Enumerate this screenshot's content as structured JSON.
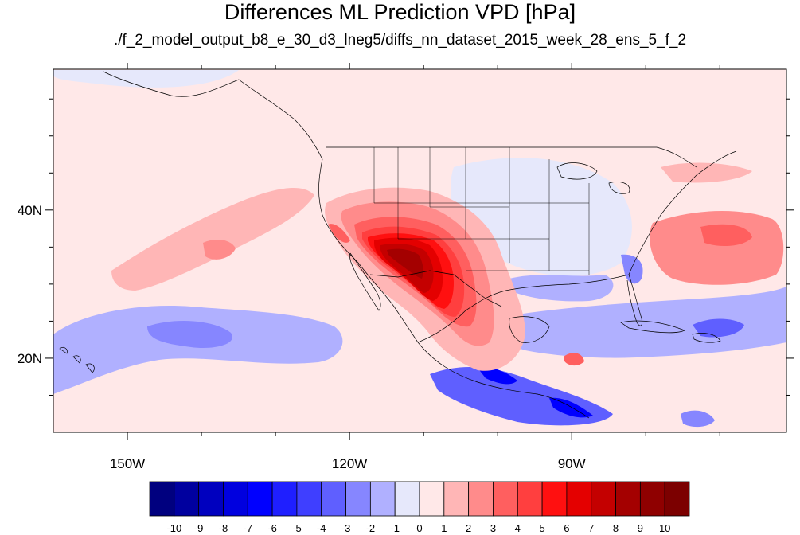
{
  "chart_data": {
    "type": "heatmap",
    "title": "Differences ML Prediction VPD [hPa]",
    "subtitle": "./f_2_model_output_b8_e_30_d3_lneg5/diffs_nn_dataset_2015_week_28_ens_5_f_2",
    "units": "hPa",
    "map_extent": {
      "lon": [
        -160,
        -61
      ],
      "lat": [
        10,
        59
      ]
    },
    "x_ticks": [
      {
        "value": -150,
        "label": "150W"
      },
      {
        "value": -120,
        "label": "120W"
      },
      {
        "value": -90,
        "label": "90W"
      }
    ],
    "y_ticks": [
      {
        "value": 40,
        "label": "40N"
      },
      {
        "value": 20,
        "label": "20N"
      }
    ],
    "x_minor_ticks": [
      -140,
      -130,
      -110,
      -100,
      -80,
      -70
    ],
    "y_minor_ticks": [
      15,
      25,
      30,
      35,
      45,
      50,
      55
    ],
    "colorbar": {
      "levels": [
        -10,
        -9,
        -8,
        -7,
        -6,
        -5,
        -4,
        -3,
        -2,
        -1,
        0,
        1,
        2,
        3,
        4,
        5,
        6,
        7,
        8,
        9,
        10
      ],
      "level_labels": [
        "-10",
        "-9",
        "-8",
        "-7",
        "-6",
        "-5",
        "-4",
        "-3",
        "-2",
        "-1",
        "0",
        "1",
        "2",
        "3",
        "4",
        "5",
        "6",
        "7",
        "8",
        "9",
        "10"
      ],
      "colors": [
        "#00007f",
        "#00009f",
        "#0000bf",
        "#0000df",
        "#0000ff",
        "#1f1fff",
        "#3f3fff",
        "#5f5fff",
        "#8686ff",
        "#b0b0ff",
        "#e6e8fb",
        "#ffe8e8",
        "#ffb6b6",
        "#ff8b8b",
        "#ff5f5f",
        "#ff3f3f",
        "#ff1010",
        "#e40000",
        "#c40000",
        "#a40000",
        "#8f0000",
        "#7c0000"
      ]
    },
    "regions": [
      {
        "name": "background",
        "level_index": 11
      },
      {
        "name": "north-pacific-cool-patch",
        "level_index": 10
      },
      {
        "name": "eastern-us-cool",
        "level_index": 10
      },
      {
        "name": "gulf-coast-cool",
        "level_index": 9
      },
      {
        "name": "florida-coast-cool",
        "level_index": 8
      },
      {
        "name": "subtropical-pacific-cool-band",
        "level_index": 9
      },
      {
        "name": "central-pacific-cool-core",
        "level_index": 8
      },
      {
        "name": "caribbean-cool",
        "level_index": 9
      },
      {
        "name": "caribbean-cool-core",
        "level_index": 7
      },
      {
        "name": "central-america-coast-cool",
        "level_index": 7
      },
      {
        "name": "central-america-coast-core",
        "level_index": 4
      },
      {
        "name": "far-east-pacific-cool",
        "level_index": 8
      },
      {
        "name": "pacific-warm-streak",
        "level_index": 12
      },
      {
        "name": "pacific-warm-patch",
        "level_index": 13
      },
      {
        "name": "atlantic-warm",
        "level_index": 13
      },
      {
        "name": "atlantic-warm-core",
        "level_index": 14
      },
      {
        "name": "hudson-bay-warm",
        "level_index": 12
      },
      {
        "name": "southwest-us-mexico-warm",
        "level_index": 12
      },
      {
        "name": "southwest-level-3",
        "level_index": 13
      },
      {
        "name": "southwest-level-4",
        "level_index": 14
      },
      {
        "name": "southwest-level-5",
        "level_index": 15
      },
      {
        "name": "southwest-level-6",
        "level_index": 16
      },
      {
        "name": "southwest-level-7",
        "level_index": 17
      },
      {
        "name": "southwest-level-8",
        "level_index": 18
      },
      {
        "name": "southwest-core",
        "level_index": 19
      },
      {
        "name": "california-coast-warm",
        "level_index": 14
      },
      {
        "name": "gulf-of-honduras-warm",
        "level_index": 14
      }
    ]
  }
}
